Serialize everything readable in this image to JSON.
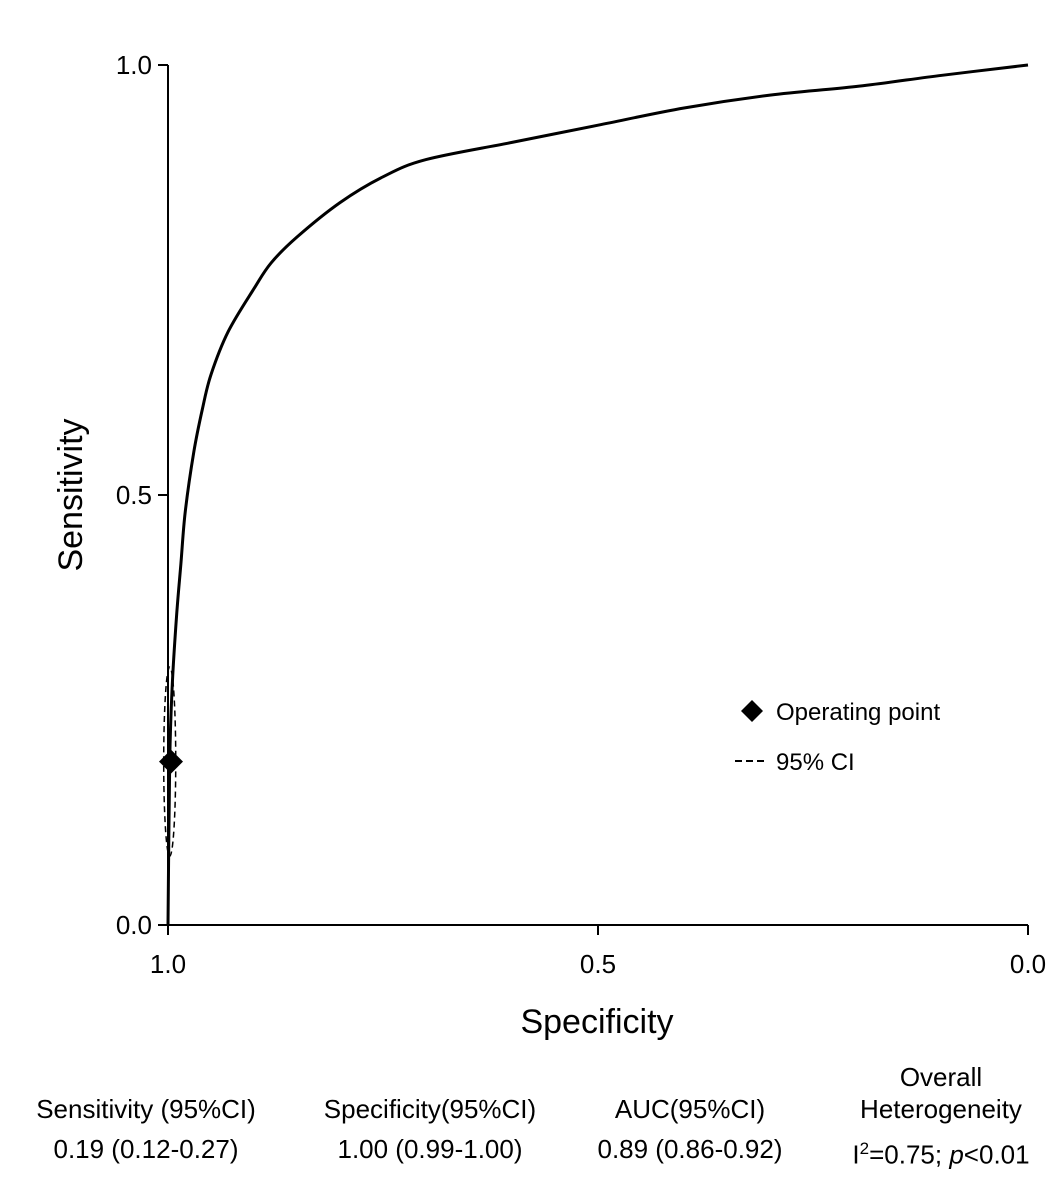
{
  "chart_data": {
    "type": "line",
    "xlabel": "Specificity",
    "ylabel": "Sensitivity",
    "xlim": [
      1.0,
      0.0
    ],
    "ylim": [
      0.0,
      1.0
    ],
    "x_reversed": true,
    "grid": false,
    "x_ticks": [
      "1.0",
      "0.5",
      "0.0"
    ],
    "y_ticks": [
      "0.0",
      "0.5",
      "1.0"
    ],
    "legend_position": "lower-right",
    "legend": [
      {
        "label": "Operating point",
        "marker": "diamond"
      },
      {
        "label": "95% CI",
        "marker": "dashed-line"
      }
    ],
    "sroc_curve": {
      "specificity": [
        1.0,
        0.998,
        0.995,
        0.99,
        0.985,
        0.98,
        0.97,
        0.96,
        0.95,
        0.93,
        0.9,
        0.88,
        0.85,
        0.8,
        0.75,
        0.7,
        0.6,
        0.5,
        0.4,
        0.3,
        0.2,
        0.1,
        0.0
      ],
      "sensitivity": [
        0.0,
        0.19,
        0.28,
        0.36,
        0.42,
        0.48,
        0.55,
        0.6,
        0.64,
        0.69,
        0.74,
        0.77,
        0.8,
        0.84,
        0.87,
        0.89,
        0.91,
        0.93,
        0.95,
        0.965,
        0.975,
        0.988,
        1.0
      ]
    },
    "operating_point": {
      "specificity": 1.0,
      "sensitivity": 0.19
    },
    "confidence_region": {
      "center_specificity": 0.998,
      "center_sensitivity": 0.19,
      "half_width_specificity": 0.007,
      "half_height_sensitivity": 0.11
    }
  },
  "stats": {
    "sensitivity": {
      "header": "Sensitivity (95%CI)",
      "value": "0.19 (0.12-0.27)"
    },
    "specificity": {
      "header": "Specificity(95%CI)",
      "value": "1.00 (0.99-1.00)"
    },
    "auc": {
      "header": "AUC(95%CI)",
      "value": "0.89 (0.86-0.92)"
    },
    "heterogeneity": {
      "header_line1": "Overall",
      "header_line2": "Heterogeneity",
      "value_prefix": "I",
      "value_sup": "2",
      "value_mid": "=0.75; ",
      "value_p": "p",
      "value_suffix": "<0.01"
    }
  }
}
